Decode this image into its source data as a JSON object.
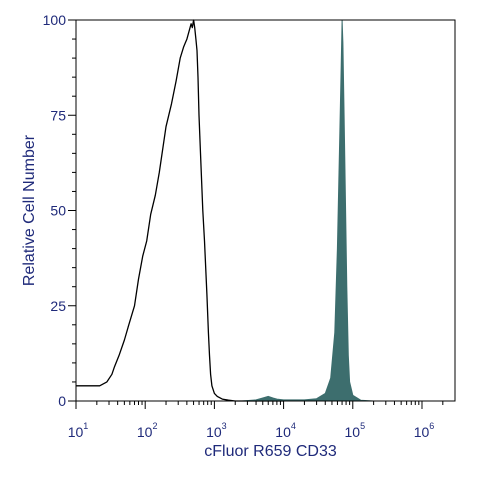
{
  "chart_data": {
    "type": "area",
    "title": "",
    "xlabel": "cFluor R659 CD33",
    "ylabel": "Relative Cell Number",
    "x_scale": "log",
    "xlim": [
      10,
      3000000
    ],
    "ylim": [
      0,
      100
    ],
    "y_ticks": [
      0,
      25,
      50,
      75,
      100
    ],
    "x_ticks": [
      {
        "value": 10,
        "base": "10",
        "exp": "1"
      },
      {
        "value": 100,
        "base": "10",
        "exp": "2"
      },
      {
        "value": 1000,
        "base": "10",
        "exp": "3"
      },
      {
        "value": 10000,
        "base": "10",
        "exp": "4"
      },
      {
        "value": 100000,
        "base": "10",
        "exp": "5"
      },
      {
        "value": 1000000,
        "base": "10",
        "exp": "6"
      }
    ],
    "grid": false,
    "colors": {
      "axis_text": "#1f2a7a",
      "unstained_line": "#000000",
      "stained_fill": "#3d6e6e",
      "frame": "#000000"
    },
    "series": [
      {
        "style": "line",
        "x": [
          10,
          15,
          22,
          28,
          33,
          36,
          42,
          50,
          58,
          70,
          80,
          92,
          105,
          120,
          140,
          160,
          200,
          240,
          280,
          320,
          360,
          380,
          400,
          430,
          460,
          480,
          500,
          520,
          540,
          560,
          580,
          600,
          630,
          680,
          720,
          780,
          820,
          850,
          880,
          920,
          1000,
          1100,
          1300,
          1600,
          2000,
          3000,
          10000
        ],
        "y": [
          4,
          4,
          4,
          5,
          7,
          9,
          12,
          16,
          20,
          25,
          32,
          38,
          42,
          49,
          54,
          60,
          72,
          78,
          84,
          90,
          93,
          94,
          95,
          97,
          99,
          98,
          100,
          98,
          95,
          92,
          85,
          75,
          65,
          50,
          42,
          28,
          18,
          12,
          7,
          4,
          2,
          1.2,
          0.5,
          0.2,
          0,
          0,
          0
        ]
      },
      {
        "style": "filled",
        "x": [
          2500,
          4000,
          5000,
          6000,
          7000,
          8000,
          10000,
          20000,
          30000,
          40000,
          48000,
          55000,
          60000,
          65000,
          68000,
          70000,
          72000,
          75000,
          78000,
          82000,
          86000,
          90000,
          100000,
          130000,
          200000
        ],
        "y": [
          0,
          0.3,
          0.8,
          1.2,
          0.8,
          0.5,
          0.3,
          0.3,
          0.6,
          2,
          6,
          18,
          40,
          70,
          88,
          100,
          94,
          75,
          55,
          30,
          12,
          5,
          1.5,
          0.2,
          0
        ]
      }
    ]
  }
}
